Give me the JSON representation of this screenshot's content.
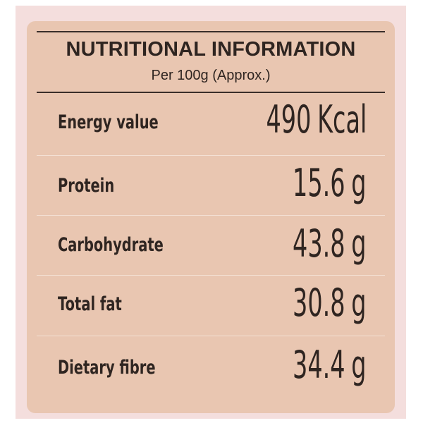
{
  "header": {
    "title": "NUTRITIONAL INFORMATION",
    "subtitle": "Per 100g (Approx.)"
  },
  "rows": [
    {
      "label": "Energy value",
      "amount": "490",
      "unit": "Kcal"
    },
    {
      "label": "Protein",
      "amount": "15.6",
      "unit": "g"
    },
    {
      "label": "Carbohydrate",
      "amount": "43.8",
      "unit": "g"
    },
    {
      "label": "Total fat",
      "amount": "30.8",
      "unit": "g"
    },
    {
      "label": "Dietary fibre",
      "amount": "34.4",
      "unit": "g"
    }
  ]
}
